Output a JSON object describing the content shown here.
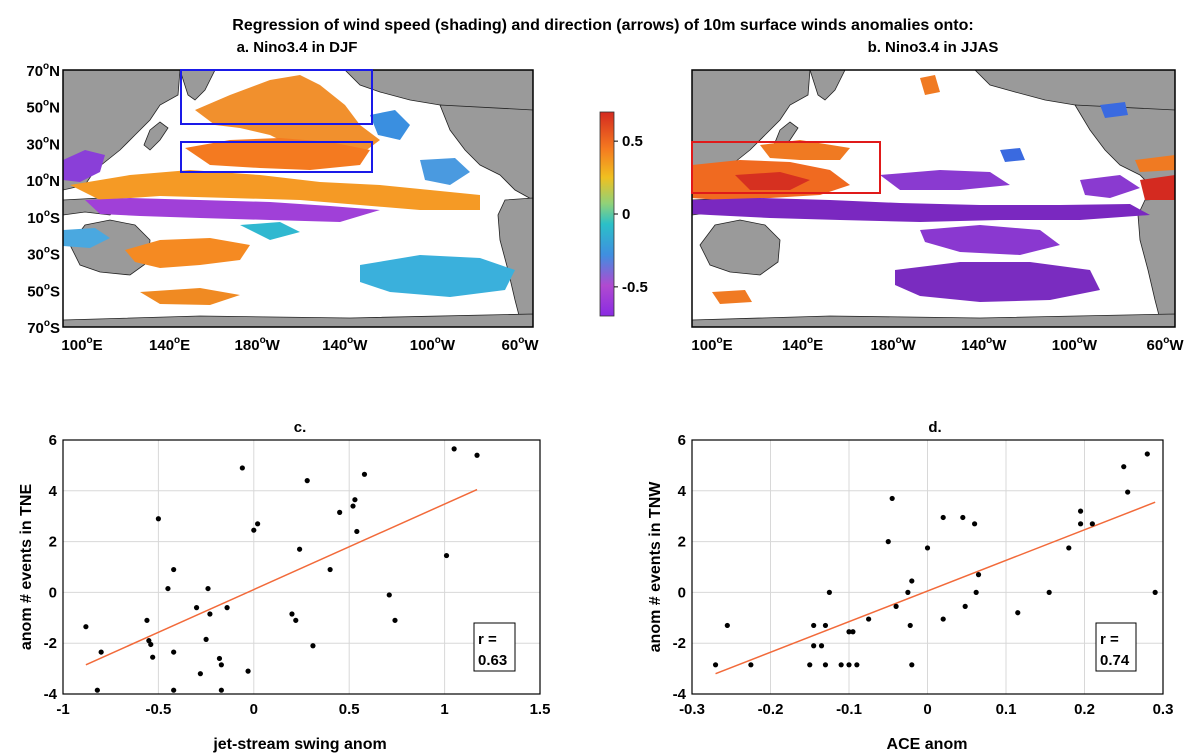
{
  "figure_title": "Regression of wind speed (shading) and direction (arrows) of 10m surface winds anomalies onto:",
  "maps": [
    {
      "title": "a. Nino3.4 in DJF",
      "lat_ticks": [
        "70",
        "50",
        "30",
        "10",
        "10",
        "30",
        "50",
        "70"
      ],
      "lat_hemis": [
        "N",
        "N",
        "N",
        "N",
        "S",
        "S",
        "S",
        "S"
      ],
      "lon_ticks": [
        "100",
        "140",
        "180",
        "140",
        "100",
        "60"
      ],
      "lon_hemis": [
        "E",
        "E",
        "W",
        "W",
        "W",
        "W"
      ]
    },
    {
      "title": "b. Nino3.4 in JJAS",
      "lon_ticks": [
        "100",
        "140",
        "180",
        "140",
        "100",
        "60"
      ],
      "lon_hemis": [
        "E",
        "E",
        "W",
        "W",
        "W",
        "W"
      ]
    }
  ],
  "colorbar": {
    "ticks": [
      "0.5",
      "0",
      "-0.5"
    ],
    "tick_values": [
      0.5,
      0,
      -0.5
    ],
    "range": [
      -0.7,
      0.7
    ]
  },
  "chart_data": [
    {
      "type": "scatter",
      "title": "c.",
      "xlabel": "jet-stream swing anom",
      "ylabel": "anom # events in TNE",
      "xlim": [
        -1,
        1.5
      ],
      "ylim": [
        -4,
        6
      ],
      "xticks": [
        "-1",
        "-0.5",
        "0",
        "0.5",
        "1",
        "1.5"
      ],
      "xtick_values": [
        -1,
        -0.5,
        0,
        0.5,
        1,
        1.5
      ],
      "yticks": [
        "-4",
        "-2",
        "0",
        "2",
        "4",
        "6"
      ],
      "ytick_values": [
        -4,
        -2,
        0,
        2,
        4,
        6
      ],
      "grid": true,
      "r_label": "r =",
      "r_value": "0.63",
      "fit_line": {
        "x": [
          -0.88,
          1.17
        ],
        "y": [
          -2.85,
          4.05
        ]
      },
      "points": [
        [
          -0.88,
          -1.35
        ],
        [
          -0.8,
          -2.35
        ],
        [
          -0.82,
          -3.85
        ],
        [
          -0.56,
          -1.1
        ],
        [
          -0.55,
          -1.9
        ],
        [
          -0.54,
          -2.05
        ],
        [
          -0.53,
          -2.55
        ],
        [
          -0.5,
          2.9
        ],
        [
          -0.45,
          0.15
        ],
        [
          -0.42,
          0.9
        ],
        [
          -0.42,
          -2.35
        ],
        [
          -0.42,
          -3.85
        ],
        [
          -0.3,
          -0.6
        ],
        [
          -0.28,
          -3.2
        ],
        [
          -0.25,
          -1.85
        ],
        [
          -0.24,
          0.15
        ],
        [
          -0.23,
          -0.85
        ],
        [
          -0.18,
          -2.6
        ],
        [
          -0.17,
          -2.85
        ],
        [
          -0.17,
          -3.85
        ],
        [
          -0.14,
          -0.6
        ],
        [
          -0.06,
          4.9
        ],
        [
          -0.03,
          -3.1
        ],
        [
          0.0,
          2.45
        ],
        [
          0.02,
          2.7
        ],
        [
          0.2,
          -0.85
        ],
        [
          0.22,
          -1.1
        ],
        [
          0.24,
          1.7
        ],
        [
          0.28,
          4.4
        ],
        [
          0.31,
          -2.1
        ],
        [
          0.4,
          0.9
        ],
        [
          0.45,
          3.15
        ],
        [
          0.52,
          3.4
        ],
        [
          0.53,
          3.65
        ],
        [
          0.54,
          2.4
        ],
        [
          0.58,
          4.65
        ],
        [
          0.71,
          -0.1
        ],
        [
          0.74,
          -1.1
        ],
        [
          1.01,
          1.45
        ],
        [
          1.05,
          5.65
        ],
        [
          1.17,
          5.4
        ]
      ]
    },
    {
      "type": "scatter",
      "title": "d.",
      "xlabel": "ACE anom",
      "ylabel": "anom # events in TNW",
      "xlim": [
        -0.3,
        0.3
      ],
      "ylim": [
        -4,
        6
      ],
      "xticks": [
        "-0.3",
        "-0.2",
        "-0.1",
        "0",
        "0.1",
        "0.2",
        "0.3"
      ],
      "xtick_values": [
        -0.3,
        -0.2,
        -0.1,
        0,
        0.1,
        0.2,
        0.3
      ],
      "yticks": [
        "-4",
        "-2",
        "0",
        "2",
        "4",
        "6"
      ],
      "ytick_values": [
        -4,
        -2,
        0,
        2,
        4,
        6
      ],
      "grid": true,
      "r_label": "r =",
      "r_value": "0.74",
      "fit_line": {
        "x": [
          -0.27,
          0.29
        ],
        "y": [
          -3.2,
          3.55
        ]
      },
      "points": [
        [
          -0.27,
          -2.85
        ],
        [
          -0.255,
          -1.3
        ],
        [
          -0.225,
          -2.85
        ],
        [
          -0.15,
          -2.85
        ],
        [
          -0.145,
          -1.3
        ],
        [
          -0.145,
          -2.1
        ],
        [
          -0.135,
          -2.1
        ],
        [
          -0.13,
          -2.85
        ],
        [
          -0.13,
          -1.3
        ],
        [
          -0.125,
          0.0
        ],
        [
          -0.11,
          -2.85
        ],
        [
          -0.1,
          -2.85
        ],
        [
          -0.1,
          -1.55
        ],
        [
          -0.095,
          -1.55
        ],
        [
          -0.09,
          -2.85
        ],
        [
          -0.075,
          -1.05
        ],
        [
          -0.05,
          2.0
        ],
        [
          -0.045,
          3.7
        ],
        [
          -0.04,
          -0.55
        ],
        [
          -0.025,
          0.0
        ],
        [
          -0.022,
          -1.3
        ],
        [
          -0.02,
          -2.85
        ],
        [
          -0.02,
          0.45
        ],
        [
          0.0,
          1.75
        ],
        [
          0.02,
          2.95
        ],
        [
          0.02,
          -1.05
        ],
        [
          0.045,
          2.95
        ],
        [
          0.048,
          -0.55
        ],
        [
          0.06,
          2.7
        ],
        [
          0.062,
          0.0
        ],
        [
          0.065,
          0.7
        ],
        [
          0.115,
          -0.8
        ],
        [
          0.155,
          0.0
        ],
        [
          0.18,
          1.75
        ],
        [
          0.195,
          2.7
        ],
        [
          0.195,
          3.2
        ],
        [
          0.21,
          2.7
        ],
        [
          0.25,
          4.95
        ],
        [
          0.255,
          3.95
        ],
        [
          0.28,
          5.45
        ],
        [
          0.29,
          0.0
        ]
      ]
    }
  ]
}
